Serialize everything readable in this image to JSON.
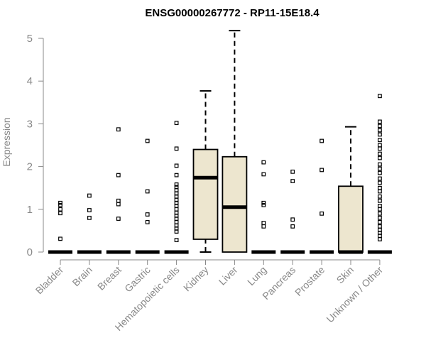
{
  "chart_data": {
    "type": "box",
    "title": "ENSG00000267772 - RP11-15E18.4",
    "ylabel": "Expression",
    "ylim": [
      0,
      5.25
    ],
    "yticks": [
      0,
      1,
      2,
      3,
      4,
      5
    ],
    "box_fill": "#ede6cf",
    "axis_color": "#888888",
    "categories": [
      "Bladder",
      "Brain",
      "Breast",
      "Gastric",
      "Hematopoietic cells",
      "Kidney",
      "Liver",
      "Lung",
      "Pancreas",
      "Prostate",
      "Skin",
      "Unknown / Other"
    ],
    "boxes": [
      {
        "min": 0,
        "q1": 0,
        "median": 0,
        "q3": 0,
        "max": 0,
        "outliers": [
          0.31,
          0.91,
          1.0,
          1.1,
          1.15
        ]
      },
      {
        "min": 0,
        "q1": 0,
        "median": 0,
        "q3": 0,
        "max": 0,
        "outliers": [
          0.8,
          0.98,
          1.32
        ]
      },
      {
        "min": 0,
        "q1": 0,
        "median": 0,
        "q3": 0,
        "max": 0,
        "outliers": [
          0.78,
          1.12,
          1.2,
          1.8,
          2.87
        ]
      },
      {
        "min": 0,
        "q1": 0,
        "median": 0,
        "q3": 0,
        "max": 0,
        "outliers": [
          0.7,
          0.88,
          1.42,
          2.6
        ]
      },
      {
        "min": 0,
        "q1": 0,
        "median": 0,
        "q3": 0,
        "max": 0,
        "outliers": [
          0.28,
          0.48,
          0.55,
          0.62,
          0.7,
          0.78,
          0.85,
          0.92,
          1.0,
          1.08,
          1.15,
          1.22,
          1.3,
          1.37,
          1.45,
          1.52,
          1.58,
          1.8,
          2.02,
          2.42,
          3.02
        ]
      },
      {
        "min": 0,
        "q1": 0.3,
        "median": 1.74,
        "q3": 2.4,
        "max": 3.77,
        "outliers": []
      },
      {
        "min": 0,
        "q1": 0,
        "median": 1.05,
        "q3": 2.23,
        "max": 5.18,
        "outliers": []
      },
      {
        "min": 0,
        "q1": 0,
        "median": 0,
        "q3": 0,
        "max": 0,
        "outliers": [
          0.6,
          0.68,
          1.1,
          1.15,
          1.82,
          2.1
        ]
      },
      {
        "min": 0,
        "q1": 0,
        "median": 0,
        "q3": 0,
        "max": 0,
        "outliers": [
          0.6,
          0.76,
          1.66,
          1.88
        ]
      },
      {
        "min": 0,
        "q1": 0,
        "median": 0,
        "q3": 0,
        "max": 0,
        "outliers": [
          0.9,
          1.92,
          2.6
        ]
      },
      {
        "min": 0,
        "q1": 0,
        "median": 0,
        "q3": 1.54,
        "max": 2.93,
        "outliers": []
      },
      {
        "min": 0,
        "q1": 0,
        "median": 0,
        "q3": 0,
        "max": 0,
        "outliers": [
          0.3,
          0.38,
          0.45,
          0.52,
          0.6,
          0.7,
          0.8,
          0.9,
          1.0,
          1.08,
          1.2,
          1.3,
          1.42,
          1.5,
          1.62,
          1.72,
          1.85,
          1.95,
          2.05,
          2.2,
          2.3,
          2.42,
          2.5,
          2.62,
          2.75,
          2.85,
          2.95,
          3.05,
          3.65
        ]
      }
    ]
  }
}
